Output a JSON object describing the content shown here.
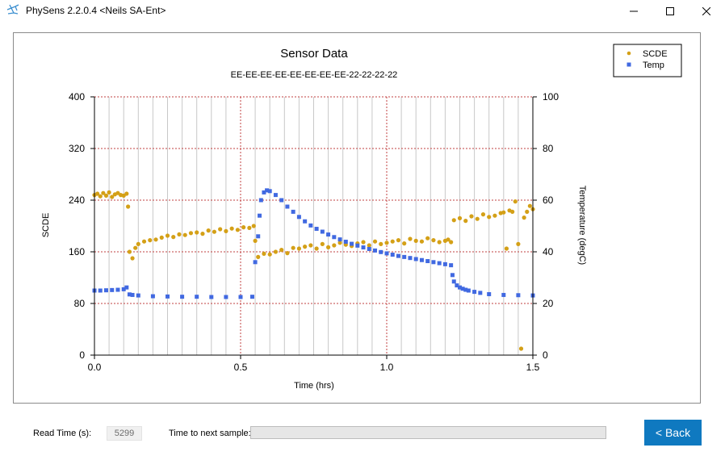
{
  "window": {
    "title": "PhySens 2.2.0.4 <Neils SA-Ent>",
    "icons": [
      "app-icon",
      "minimize-icon",
      "maximize-icon",
      "close-icon"
    ]
  },
  "bottom": {
    "read_time_label": "Read Time (s):",
    "read_time_value": "5299",
    "next_sample_label": "Time to next sample:",
    "next_sample_progress": 0,
    "back_label": "< Back"
  },
  "colors": {
    "scde": "#d4a017",
    "temp": "#4169e1",
    "grid_major": "#c04040",
    "grid_minor": "#c8c8c8",
    "back_button": "#0f79c0"
  },
  "chart_data": {
    "type": "scatter",
    "title": "Sensor Data",
    "subtitle": "EE-EE-EE-EE-EE-EE-EE-EE-22-22-22-22",
    "xlabel": "Time (hrs)",
    "ylabel": "SCDE",
    "y2label": "Temperature (degC)",
    "xlim": [
      0,
      1.5
    ],
    "ylim": [
      0,
      400
    ],
    "y2lim": [
      0,
      100
    ],
    "xticks": [
      "0.0",
      "0.5",
      "1.0",
      "1.5"
    ],
    "yticks": [
      "0",
      "80",
      "160",
      "240",
      "320",
      "400"
    ],
    "y2ticks": [
      "0",
      "20",
      "40",
      "60",
      "80",
      "100"
    ],
    "grid": true,
    "legend": "top-right",
    "series": [
      {
        "name": "SCDE",
        "axis": "left",
        "marker": "circle",
        "x": [
          0.0,
          0.01,
          0.02,
          0.03,
          0.04,
          0.05,
          0.06,
          0.07,
          0.08,
          0.09,
          0.1,
          0.11,
          0.115,
          0.12,
          0.13,
          0.14,
          0.15,
          0.17,
          0.19,
          0.21,
          0.23,
          0.25,
          0.27,
          0.29,
          0.31,
          0.33,
          0.35,
          0.37,
          0.39,
          0.41,
          0.43,
          0.45,
          0.47,
          0.49,
          0.51,
          0.53,
          0.545,
          0.55,
          0.56,
          0.58,
          0.6,
          0.62,
          0.64,
          0.66,
          0.68,
          0.7,
          0.72,
          0.74,
          0.76,
          0.78,
          0.8,
          0.82,
          0.84,
          0.86,
          0.88,
          0.9,
          0.92,
          0.94,
          0.96,
          0.98,
          1.0,
          1.02,
          1.04,
          1.06,
          1.08,
          1.1,
          1.12,
          1.14,
          1.16,
          1.18,
          1.2,
          1.21,
          1.22,
          1.23,
          1.25,
          1.27,
          1.29,
          1.31,
          1.33,
          1.35,
          1.37,
          1.39,
          1.4,
          1.41,
          1.42,
          1.43,
          1.44,
          1.45,
          1.46,
          1.47,
          1.48,
          1.49,
          1.5
        ],
        "y": [
          248,
          250,
          246,
          251,
          247,
          252,
          245,
          249,
          251,
          248,
          247,
          250,
          230,
          160,
          150,
          166,
          172,
          176,
          178,
          179,
          182,
          185,
          183,
          187,
          186,
          189,
          190,
          188,
          193,
          191,
          195,
          192,
          196,
          194,
          198,
          197,
          200,
          177,
          152,
          157,
          156,
          160,
          163,
          158,
          166,
          165,
          168,
          170,
          165,
          172,
          167,
          170,
          174,
          171,
          169,
          173,
          175,
          170,
          176,
          172,
          174,
          176,
          178,
          173,
          180,
          177,
          176,
          181,
          178,
          175,
          177,
          179,
          175,
          209,
          212,
          208,
          215,
          211,
          218,
          214,
          216,
          220,
          221,
          165,
          224,
          222,
          238,
          172,
          10,
          213,
          222,
          231,
          226
        ]
      },
      {
        "name": "Temp",
        "axis": "right",
        "marker": "square",
        "x": [
          0.0,
          0.02,
          0.04,
          0.06,
          0.08,
          0.1,
          0.11,
          0.12,
          0.13,
          0.15,
          0.2,
          0.25,
          0.3,
          0.35,
          0.4,
          0.45,
          0.5,
          0.54,
          0.55,
          0.56,
          0.565,
          0.57,
          0.58,
          0.59,
          0.6,
          0.62,
          0.64,
          0.66,
          0.68,
          0.7,
          0.72,
          0.74,
          0.76,
          0.78,
          0.8,
          0.82,
          0.84,
          0.86,
          0.88,
          0.9,
          0.92,
          0.94,
          0.96,
          0.98,
          1.0,
          1.02,
          1.04,
          1.06,
          1.08,
          1.1,
          1.12,
          1.14,
          1.16,
          1.18,
          1.2,
          1.22,
          1.225,
          1.23,
          1.24,
          1.25,
          1.26,
          1.27,
          1.28,
          1.3,
          1.32,
          1.35,
          1.4,
          1.45,
          1.5
        ],
        "y": [
          25.0,
          25.0,
          25.1,
          25.2,
          25.3,
          25.5,
          26.2,
          23.5,
          23.3,
          23.1,
          22.8,
          22.7,
          22.6,
          22.6,
          22.5,
          22.5,
          22.5,
          22.6,
          36.0,
          46.0,
          54.0,
          60.0,
          63.0,
          63.8,
          63.5,
          62.0,
          60.0,
          57.5,
          55.5,
          53.5,
          51.8,
          50.2,
          48.9,
          47.8,
          46.7,
          45.7,
          44.8,
          43.9,
          43.1,
          42.4,
          41.7,
          41.1,
          40.5,
          39.9,
          39.4,
          38.9,
          38.4,
          38.0,
          37.6,
          37.2,
          36.8,
          36.4,
          36.0,
          35.6,
          35.2,
          34.8,
          31.0,
          28.5,
          27.0,
          26.2,
          25.7,
          25.3,
          25.0,
          24.5,
          24.1,
          23.6,
          23.3,
          23.2,
          23.1
        ]
      }
    ]
  }
}
